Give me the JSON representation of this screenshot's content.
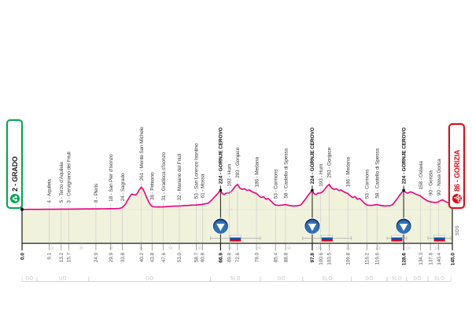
{
  "race": {
    "start": {
      "label": "2 - GRADO",
      "km_label": "0.0"
    },
    "finish": {
      "label": "86 - GORIZIA",
      "km_label": "145.0"
    },
    "signature": "SDS"
  },
  "colors": {
    "route_pink": "#E6007E",
    "profile_fill": "#F1F2DC",
    "start_green": "#00A651",
    "finish_red": "#E30613",
    "gpm_navy": "#16355F",
    "gpm_blue": "#2E6FB7",
    "flag_white": "#FFFFFF",
    "flag_blue": "#0055A4",
    "flag_red": "#DE0029",
    "axis_black": "#1a1a1a",
    "thin_line_gray": "#C9C9C9",
    "muted_gray": "#BDBDBD"
  },
  "chart_data": {
    "type": "area",
    "title": "",
    "xlabel": "km",
    "ylabel": "elevation (m)",
    "xlim_km": [
      0,
      145
    ],
    "ylim_m": [
      0,
      390
    ],
    "legend": "none",
    "grid": "off",
    "waypoints": [
      {
        "km": 0.0,
        "km_label": "0.0",
        "name": "",
        "major": true
      },
      {
        "km": 9.1,
        "km_label": "9.1",
        "name": "4 - Aquileia"
      },
      {
        "km": 13.2,
        "km_label": "13.2",
        "name": "5 - Terzo d'Aquileia"
      },
      {
        "km": 15.7,
        "km_label": "15.7",
        "name": "3 - Cervignano del Friuli"
      },
      {
        "km": 24.9,
        "km_label": "24.9",
        "name": "8 - Pieris"
      },
      {
        "km": 29.9,
        "km_label": "29.9",
        "name": "18 - San Pier d'Isonzo"
      },
      {
        "km": 33.8,
        "km_label": "33.8",
        "name": "24 - Sagrado"
      },
      {
        "km": 40.2,
        "km_label": "40.2",
        "name": "261 - Monte San Michele"
      },
      {
        "km": 43.8,
        "km_label": "43.8",
        "name": "36 - Peteano"
      },
      {
        "km": 47.6,
        "km_label": "47.6",
        "name": "31 - Gradisca d'Isonzo"
      },
      {
        "km": 53.0,
        "km_label": "53.0",
        "name": "32 - Mariano del Friuli"
      },
      {
        "km": 58.7,
        "km_label": "58.7",
        "name": "53 - San Lorenzo Isontino"
      },
      {
        "km": 60.8,
        "km_label": "60.8",
        "name": "61 - Mossa"
      },
      {
        "km": 66.9,
        "km_label": "66.9",
        "name": "224 - GORNJE CEROVO",
        "major": true
      },
      {
        "km": 69.8,
        "km_label": "69.8",
        "name": "193 - Hum"
      },
      {
        "km": 72.6,
        "km_label": "72.6",
        "name": "293 - Gonjace"
      },
      {
        "km": 79.0,
        "km_label": "79.0",
        "name": "186 - Medana"
      },
      {
        "km": 85.4,
        "km_label": "85.4",
        "name": "53 - Cormons"
      },
      {
        "km": 88.8,
        "km_label": "88.8",
        "name": "58 - Castello di Spessa"
      },
      {
        "km": 97.8,
        "km_label": "97.8",
        "name": "224 - GORNJE CEROVO",
        "major": true
      },
      {
        "km": 100.6,
        "km_label": "100.6",
        "name": "193 - Hum"
      },
      {
        "km": 103.5,
        "km_label": "103.5",
        "name": "293 - Gonjace"
      },
      {
        "km": 109.8,
        "km_label": "109.8",
        "name": "186 - Medana"
      },
      {
        "km": 116.2,
        "km_label": "116.2",
        "name": "53 - Cormons"
      },
      {
        "km": 119.6,
        "km_label": "119.6",
        "name": "58 - Castello di Spessa"
      },
      {
        "km": 128.6,
        "km_label": "128.6",
        "name": "224 - GORNJE CEROVO",
        "major": true
      },
      {
        "km": 134.3,
        "km_label": "134.3",
        "name": "158 - Oslavia"
      },
      {
        "km": 137.6,
        "km_label": "137.6",
        "name": "90 - Gorizia"
      },
      {
        "km": 140.4,
        "km_label": "140.4",
        "name": "90 - Nova Gorica"
      },
      {
        "km": 145.0,
        "km_label": "145.0",
        "name": "",
        "major": true
      }
    ],
    "profile": [
      [
        0,
        2
      ],
      [
        3,
        3
      ],
      [
        6,
        3
      ],
      [
        9.1,
        4
      ],
      [
        11,
        4
      ],
      [
        13.2,
        5
      ],
      [
        15.7,
        5
      ],
      [
        18,
        6
      ],
      [
        21,
        7
      ],
      [
        24.9,
        8
      ],
      [
        27,
        9
      ],
      [
        29.9,
        11
      ],
      [
        31.5,
        12
      ],
      [
        32.8,
        14
      ],
      [
        33.8,
        24
      ],
      [
        34.8,
        60
      ],
      [
        35.6,
        110
      ],
      [
        36.4,
        155
      ],
      [
        37,
        180
      ],
      [
        37.6,
        172
      ],
      [
        38.2,
        168
      ],
      [
        38.8,
        185
      ],
      [
        39.4,
        225
      ],
      [
        40.2,
        261
      ],
      [
        40.8,
        235
      ],
      [
        41.4,
        190
      ],
      [
        42,
        140
      ],
      [
        42.6,
        95
      ],
      [
        43.2,
        60
      ],
      [
        43.8,
        36
      ],
      [
        44.6,
        32
      ],
      [
        45.5,
        30
      ],
      [
        46.5,
        31
      ],
      [
        47.6,
        31
      ],
      [
        48.6,
        34
      ],
      [
        50,
        38
      ],
      [
        51.5,
        40
      ],
      [
        53,
        41
      ],
      [
        54.5,
        46
      ],
      [
        56,
        48
      ],
      [
        57,
        52
      ],
      [
        58.7,
        53
      ],
      [
        59.7,
        57
      ],
      [
        60.8,
        61
      ],
      [
        61.8,
        68
      ],
      [
        62.6,
        72
      ],
      [
        63.4,
        95
      ],
      [
        64.2,
        120
      ],
      [
        65,
        150
      ],
      [
        65.8,
        180
      ],
      [
        66.4,
        205
      ],
      [
        66.9,
        224
      ],
      [
        67.5,
        185
      ],
      [
        68.1,
        175
      ],
      [
        68.8,
        190
      ],
      [
        69.8,
        193
      ],
      [
        70.5,
        210
      ],
      [
        71.3,
        245
      ],
      [
        72,
        275
      ],
      [
        72.6,
        293
      ],
      [
        73.4,
        250
      ],
      [
        74.2,
        235
      ],
      [
        75,
        242
      ],
      [
        75.8,
        222
      ],
      [
        76.6,
        228
      ],
      [
        77.6,
        205
      ],
      [
        78.4,
        195
      ],
      [
        79,
        186
      ],
      [
        79.8,
        160
      ],
      [
        80.6,
        140
      ],
      [
        81.4,
        150
      ],
      [
        82.2,
        120
      ],
      [
        83,
        128
      ],
      [
        84,
        95
      ],
      [
        84.7,
        70
      ],
      [
        85.4,
        53
      ],
      [
        86.5,
        48
      ],
      [
        87.6,
        52
      ],
      [
        88.8,
        58
      ],
      [
        90,
        48
      ],
      [
        91.5,
        42
      ],
      [
        93,
        45
      ],
      [
        94,
        55
      ],
      [
        94.8,
        90
      ],
      [
        95.6,
        125
      ],
      [
        96.4,
        165
      ],
      [
        97.2,
        200
      ],
      [
        97.8,
        224
      ],
      [
        98.4,
        185
      ],
      [
        99,
        175
      ],
      [
        99.7,
        190
      ],
      [
        100.6,
        193
      ],
      [
        101.4,
        210
      ],
      [
        102.2,
        245
      ],
      [
        102.9,
        275
      ],
      [
        103.5,
        293
      ],
      [
        104.3,
        250
      ],
      [
        105.1,
        235
      ],
      [
        105.9,
        242
      ],
      [
        106.7,
        222
      ],
      [
        107.5,
        228
      ],
      [
        108.5,
        205
      ],
      [
        109.2,
        195
      ],
      [
        109.8,
        186
      ],
      [
        110.6,
        160
      ],
      [
        111.4,
        140
      ],
      [
        112.2,
        150
      ],
      [
        113,
        120
      ],
      [
        113.8,
        128
      ],
      [
        114.8,
        95
      ],
      [
        115.5,
        70
      ],
      [
        116.2,
        53
      ],
      [
        117.3,
        48
      ],
      [
        118.4,
        52
      ],
      [
        119.6,
        58
      ],
      [
        120.8,
        48
      ],
      [
        122.3,
        42
      ],
      [
        123.8,
        45
      ],
      [
        124.8,
        55
      ],
      [
        125.6,
        90
      ],
      [
        126.4,
        125
      ],
      [
        127.2,
        165
      ],
      [
        128,
        200
      ],
      [
        128.6,
        224
      ],
      [
        129.3,
        200
      ],
      [
        130,
        190
      ],
      [
        130.8,
        205
      ],
      [
        131.5,
        200
      ],
      [
        132.3,
        185
      ],
      [
        133.3,
        170
      ],
      [
        134.3,
        158
      ],
      [
        135.1,
        135
      ],
      [
        135.9,
        115
      ],
      [
        136.7,
        100
      ],
      [
        137.6,
        90
      ],
      [
        138.5,
        85
      ],
      [
        139.4,
        83
      ],
      [
        140.4,
        90
      ],
      [
        141.2,
        108
      ],
      [
        141.9,
        112
      ],
      [
        142.6,
        95
      ],
      [
        143.4,
        82
      ],
      [
        144.2,
        80
      ],
      [
        145,
        86
      ]
    ],
    "axis_km_ticks": [
      10,
      20,
      30,
      40,
      50,
      60,
      70,
      80,
      90,
      100,
      110,
      120,
      130,
      140
    ],
    "climb_marker_km": [
      66.9,
      97.8,
      128.6
    ],
    "border_flag_sections": [
      {
        "from_km": 63.5,
        "to_km": 80.3
      },
      {
        "from_km": 94.6,
        "to_km": 111.0
      },
      {
        "from_km": 123.0,
        "to_km": 129.6
      },
      {
        "from_km": 136.8,
        "to_km": 144.5
      }
    ],
    "province_segments": [
      {
        "label": "GO",
        "from_km": 0,
        "to_km": 5
      },
      {
        "label": "UD",
        "from_km": 5,
        "to_km": 22.5
      },
      {
        "label": "GO",
        "from_km": 22.5,
        "to_km": 63.5
      },
      {
        "label": "SLO",
        "from_km": 63.5,
        "to_km": 80.3
      },
      {
        "label": "GO",
        "from_km": 80.3,
        "to_km": 94.6
      },
      {
        "label": "SLO",
        "from_km": 94.6,
        "to_km": 111.0
      },
      {
        "label": "GO",
        "from_km": 111.0,
        "to_km": 123.0
      },
      {
        "label": "SLO",
        "from_km": 123.0,
        "to_km": 129.6
      },
      {
        "label": "GO",
        "from_km": 129.6,
        "to_km": 136.8
      },
      {
        "label": "SLO",
        "from_km": 136.8,
        "to_km": 144.5
      }
    ],
    "elevation_scale_labels": [
      {
        "elev_m": 200,
        "text": "200"
      },
      {
        "elev_m": 0,
        "text": "0"
      }
    ]
  }
}
